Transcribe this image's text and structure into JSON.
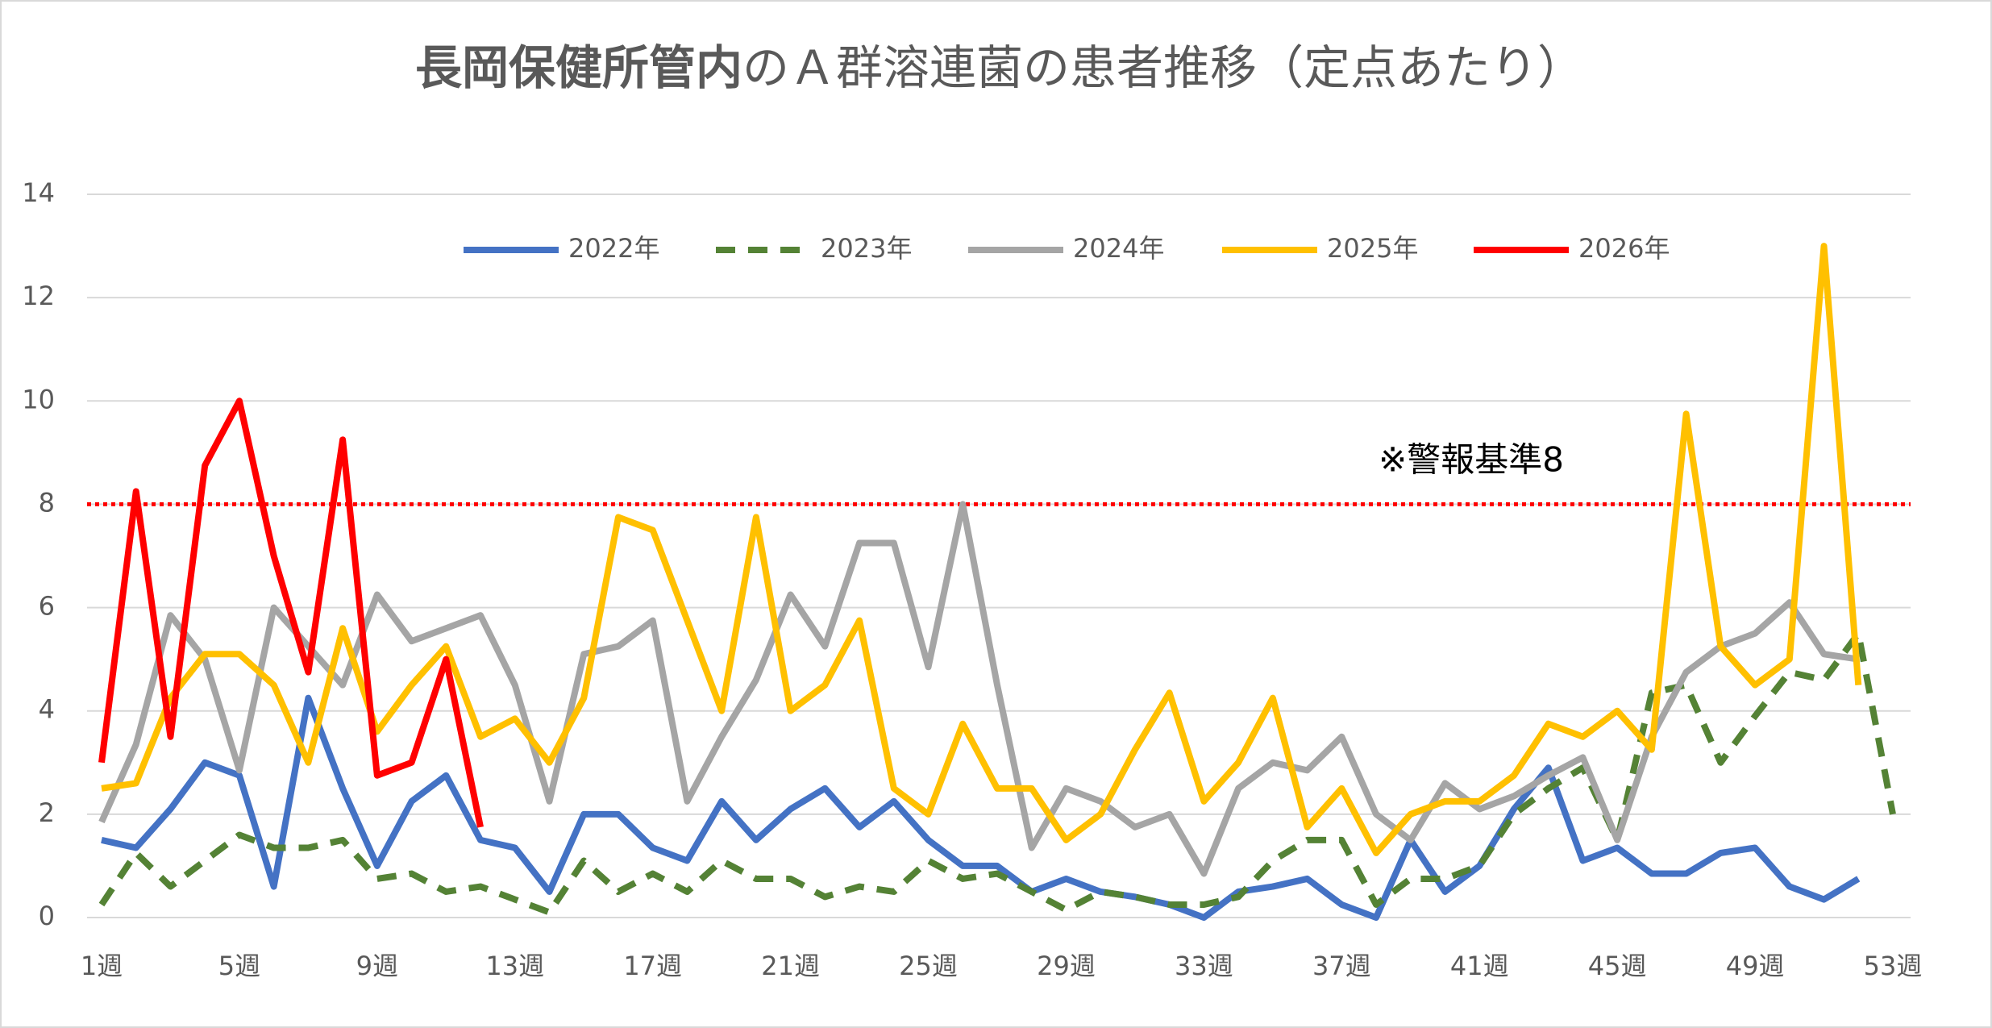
{
  "chart_data": {
    "type": "line",
    "title": [
      "長岡保健所管内",
      "のＡ群溶連菌の患者推移（定点あたり）"
    ],
    "categories": [
      "1週",
      null,
      null,
      null,
      "5週",
      null,
      null,
      null,
      "9週",
      null,
      null,
      null,
      "13週",
      null,
      null,
      null,
      "17週",
      null,
      null,
      null,
      "21週",
      null,
      null,
      null,
      "25週",
      null,
      null,
      null,
      "29週",
      null,
      null,
      null,
      "33週",
      null,
      null,
      null,
      "37週",
      null,
      null,
      null,
      "41週",
      null,
      null,
      null,
      "45週",
      null,
      null,
      null,
      "49週",
      null,
      null,
      null,
      "53週"
    ],
    "series": [
      {
        "name": "2022年",
        "color": "#4472c4",
        "dashed": false,
        "values": [
          1.5,
          1.35,
          2.1,
          3.0,
          2.75,
          0.6,
          4.25,
          2.5,
          1.0,
          2.25,
          2.75,
          1.5,
          1.35,
          0.5,
          2.0,
          2.0,
          1.35,
          1.1,
          2.25,
          1.5,
          2.1,
          2.5,
          1.75,
          2.25,
          1.5,
          1.0,
          1.0,
          0.5,
          0.75,
          0.5,
          0.4,
          0.25,
          0.0,
          0.5,
          0.6,
          0.75,
          0.25,
          0.0,
          1.5,
          0.5,
          1.0,
          2.1,
          2.9,
          1.1,
          1.35,
          0.85,
          0.85,
          1.25,
          1.35,
          0.6,
          0.35,
          0.75,
          null
        ]
      },
      {
        "name": "2023年",
        "color": "#548235",
        "dashed": true,
        "values": [
          0.25,
          1.25,
          0.6,
          1.1,
          1.6,
          1.35,
          1.35,
          1.5,
          0.75,
          0.85,
          0.5,
          0.6,
          0.35,
          0.1,
          1.1,
          0.5,
          0.85,
          0.5,
          1.1,
          0.75,
          0.75,
          0.4,
          0.6,
          0.5,
          1.1,
          0.75,
          0.85,
          0.5,
          0.15,
          0.5,
          0.4,
          0.25,
          0.25,
          0.4,
          1.1,
          1.5,
          1.5,
          0.25,
          0.75,
          0.75,
          1.0,
          2.0,
          2.5,
          2.9,
          1.5,
          4.35,
          4.5,
          3.0,
          3.9,
          4.75,
          4.6,
          5.5,
          2.0
        ]
      },
      {
        "name": "2024年",
        "color": "#a5a5a5",
        "dashed": false,
        "values": [
          1.85,
          3.35,
          5.85,
          5.0,
          2.85,
          6.0,
          5.25,
          4.5,
          6.25,
          5.35,
          5.6,
          5.85,
          4.5,
          2.25,
          5.1,
          5.25,
          5.75,
          2.25,
          3.5,
          4.6,
          6.25,
          5.25,
          7.25,
          7.25,
          4.85,
          8.0,
          4.5,
          1.35,
          2.5,
          2.25,
          1.75,
          2.0,
          0.85,
          2.5,
          3.0,
          2.85,
          3.5,
          2.0,
          1.5,
          2.6,
          2.1,
          2.35,
          2.75,
          3.1,
          1.5,
          3.5,
          4.75,
          5.25,
          5.5,
          6.1,
          5.1,
          5.0,
          null
        ]
      },
      {
        "name": "2025年",
        "color": "#ffc000",
        "dashed": false,
        "values": [
          2.5,
          2.6,
          4.25,
          5.1,
          5.1,
          4.5,
          3.0,
          5.6,
          3.6,
          4.5,
          5.25,
          3.5,
          3.85,
          3.0,
          4.25,
          7.75,
          7.5,
          5.75,
          4.0,
          7.75,
          4.0,
          4.5,
          5.75,
          2.5,
          2.0,
          3.75,
          2.5,
          2.5,
          1.5,
          2.0,
          3.25,
          4.35,
          2.25,
          3.0,
          4.25,
          1.75,
          2.5,
          1.25,
          2.0,
          2.25,
          2.25,
          2.75,
          3.75,
          3.5,
          4.0,
          3.25,
          9.75,
          5.25,
          4.5,
          5.0,
          13.0,
          4.5,
          null
        ]
      },
      {
        "name": "2026年",
        "color": "#ff0000",
        "dashed": false,
        "values": [
          3.0,
          8.25,
          3.5,
          8.75,
          10.0,
          7.0,
          4.75,
          9.25,
          2.75,
          3.0,
          5.0,
          1.75,
          null,
          null,
          null,
          null,
          null,
          null,
          null,
          null,
          null,
          null,
          null,
          null,
          null,
          null,
          null,
          null,
          null,
          null,
          null,
          null,
          null,
          null,
          null,
          null,
          null,
          null,
          null,
          null,
          null,
          null,
          null,
          null,
          null,
          null,
          null,
          null,
          null,
          null,
          null,
          null,
          null
        ]
      }
    ],
    "reference_line": {
      "value": 8,
      "label": "※警報基準8",
      "color": "#ff0000"
    },
    "ylim": [
      0,
      14
    ],
    "yticks": [
      0,
      2,
      4,
      6,
      8,
      10,
      12,
      14
    ],
    "grid": true,
    "legend": "top"
  }
}
